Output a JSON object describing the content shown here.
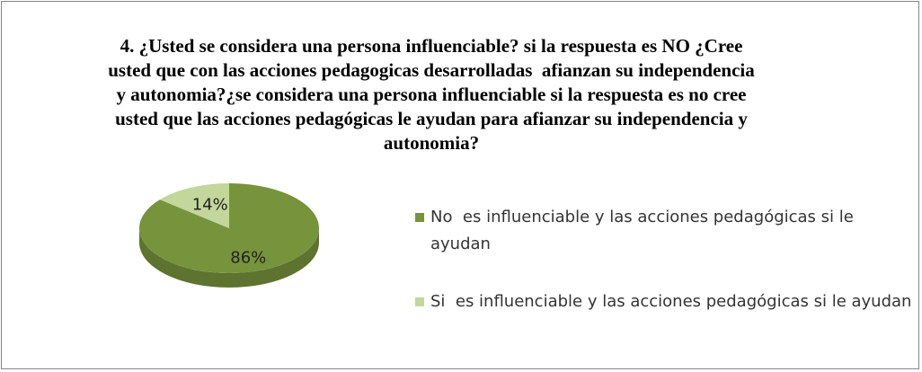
{
  "chart_data": {
    "type": "pie",
    "title": "4. ¿Usted se considera una persona influenciable? si la respuesta es NO ¿Cree usted que con las acciones pedagogicas desarrolladas  afianzan su independencia y autonomia?¿se considera una persona influenciable si la respuesta es no cree usted que las acciones pedagógicas le ayudan para afianzar su independencia y autonomia?",
    "categories": [
      "No  es influenciable y las acciones pedagógicas si le ayudan",
      "Si  es influenciable y las acciones pedagógicas si le ayudan"
    ],
    "values": [
      86,
      14
    ],
    "value_labels": [
      "86%",
      "14%"
    ],
    "colors": [
      "#77933c",
      "#c3d69b"
    ],
    "legend": "right"
  }
}
